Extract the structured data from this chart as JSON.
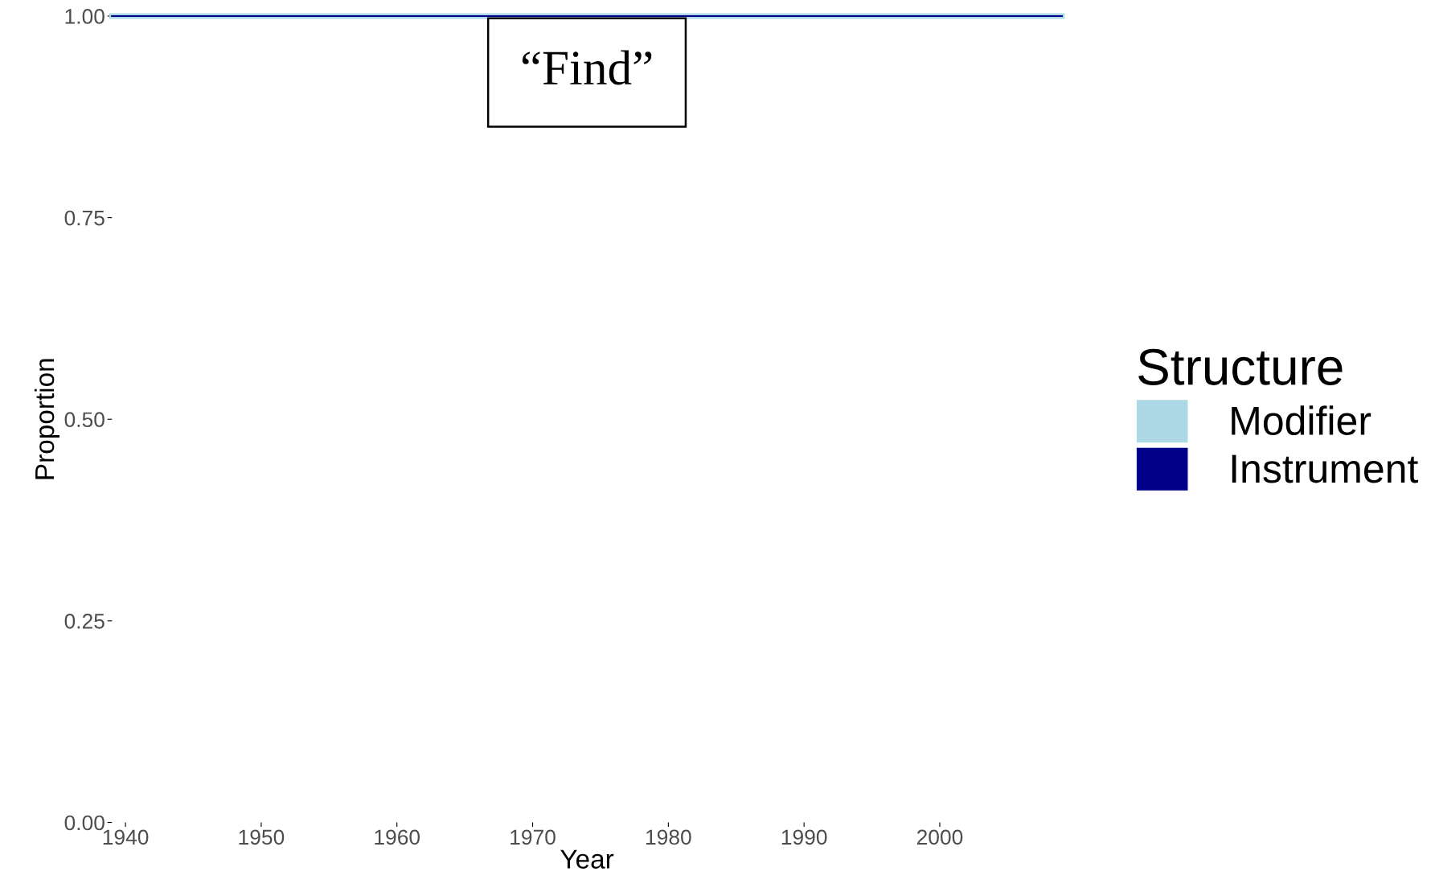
{
  "chart_data": {
    "type": "line",
    "title": "“Find”",
    "xlabel": "Year",
    "ylabel": "Proportion",
    "legend_title": "Structure",
    "x": [
      1939,
      2009
    ],
    "series": [
      {
        "name": "Modifier",
        "color": "#add8e6",
        "values": [
          1,
          1
        ]
      },
      {
        "name": "Instrument",
        "color": "#00008b",
        "values": [
          1,
          1
        ]
      }
    ],
    "xlim": [
      1939,
      2009
    ],
    "xticks": [
      1940,
      1950,
      1960,
      1970,
      1980,
      1990,
      2000
    ],
    "ylim": [
      0,
      1
    ],
    "yticks": [
      {
        "value": 0,
        "label": "0.00"
      },
      {
        "value": 0.25,
        "label": "0.25"
      },
      {
        "value": 0.5,
        "label": "0.50"
      },
      {
        "value": 0.75,
        "label": "0.75"
      },
      {
        "value": 1,
        "label": "1.00"
      }
    ],
    "grid": false,
    "legend": "right",
    "marker": "none",
    "line_style": "solid"
  }
}
